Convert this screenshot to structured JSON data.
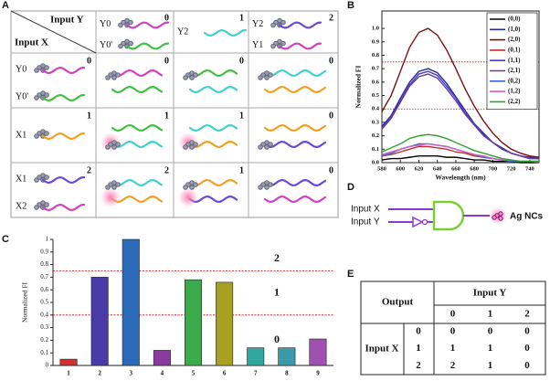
{
  "panel_labels": [
    "A",
    "B",
    "C",
    "D",
    "E"
  ],
  "chart_data": [
    {
      "type": "line",
      "xlabel": "Wavelength (nm)",
      "ylabel": "Normalized FI",
      "x": [
        580,
        590,
        600,
        610,
        620,
        630,
        640,
        650,
        660,
        670,
        680,
        690,
        700,
        710,
        720,
        730,
        740,
        750
      ],
      "xlim": [
        580,
        750
      ],
      "xticks": [
        580,
        600,
        620,
        640,
        660,
        680,
        700,
        720,
        740
      ],
      "ylim": [
        0,
        1.13
      ],
      "yticks": [
        {
          "value": 0,
          "label": "0.0"
        },
        0.1,
        0.2,
        0.3,
        0.4,
        0.5,
        0.6,
        0.7,
        0.8,
        0.9,
        {
          "value": 1,
          "label": "1.0"
        }
      ],
      "reference_lines": [
        0.75,
        0.4
      ],
      "reference_color": "#cc0000",
      "legend": "upper right",
      "series": [
        {
          "name": "(0,0)",
          "color": "#000000",
          "values": [
            0.02,
            0.03,
            0.03,
            0.04,
            0.05,
            0.05,
            0.05,
            0.04,
            0.04,
            0.03,
            0.02,
            0.02,
            0.01,
            0.01,
            0.01,
            0.0,
            0.0,
            0.0
          ]
        },
        {
          "name": "(1,0)",
          "color": "#2a2a9a",
          "values": [
            0.27,
            0.35,
            0.48,
            0.6,
            0.68,
            0.7,
            0.67,
            0.59,
            0.49,
            0.39,
            0.29,
            0.22,
            0.15,
            0.11,
            0.07,
            0.05,
            0.04,
            0.03
          ]
        },
        {
          "name": "(2,0)",
          "color": "#7a1010",
          "values": [
            0.38,
            0.5,
            0.68,
            0.86,
            0.97,
            1.0,
            0.95,
            0.84,
            0.7,
            0.55,
            0.42,
            0.31,
            0.22,
            0.15,
            0.1,
            0.07,
            0.05,
            0.04
          ]
        },
        {
          "name": "(0,1)",
          "color": "#c03030",
          "values": [
            0.05,
            0.06,
            0.08,
            0.1,
            0.12,
            0.12,
            0.11,
            0.1,
            0.08,
            0.07,
            0.05,
            0.04,
            0.03,
            0.02,
            0.01,
            0.01,
            0.01,
            0.0
          ]
        },
        {
          "name": "(1,1)",
          "color": "#4040d0",
          "values": [
            0.26,
            0.34,
            0.46,
            0.58,
            0.66,
            0.68,
            0.65,
            0.57,
            0.48,
            0.37,
            0.29,
            0.21,
            0.15,
            0.1,
            0.07,
            0.05,
            0.03,
            0.03
          ]
        },
        {
          "name": "(2,1)",
          "color": "#6a3a9a",
          "values": [
            0.25,
            0.33,
            0.45,
            0.57,
            0.64,
            0.66,
            0.63,
            0.55,
            0.46,
            0.36,
            0.28,
            0.2,
            0.15,
            0.1,
            0.07,
            0.05,
            0.03,
            0.03
          ]
        },
        {
          "name": "(0,2)",
          "color": "#3a6ad0",
          "values": [
            0.05,
            0.07,
            0.1,
            0.12,
            0.14,
            0.14,
            0.13,
            0.12,
            0.1,
            0.08,
            0.06,
            0.04,
            0.03,
            0.02,
            0.01,
            0.01,
            0.01,
            0.01
          ]
        },
        {
          "name": "(1,2)",
          "color": "#d060c0",
          "values": [
            0.06,
            0.08,
            0.1,
            0.12,
            0.13,
            0.14,
            0.13,
            0.12,
            0.1,
            0.08,
            0.06,
            0.05,
            0.03,
            0.02,
            0.02,
            0.01,
            0.01,
            0.01
          ]
        },
        {
          "name": "(2,2)",
          "color": "#30a030",
          "values": [
            0.08,
            0.11,
            0.14,
            0.18,
            0.2,
            0.21,
            0.2,
            0.18,
            0.15,
            0.12,
            0.09,
            0.07,
            0.05,
            0.03,
            0.02,
            0.01,
            0.01,
            0.01
          ]
        }
      ]
    },
    {
      "type": "bar",
      "ylabel": "Normalized FI",
      "categories": [
        "1",
        "2",
        "3",
        "4",
        "5",
        "6",
        "7",
        "8",
        "9"
      ],
      "values": [
        0.05,
        0.7,
        1.0,
        0.12,
        0.68,
        0.66,
        0.14,
        0.14,
        0.21
      ],
      "colors": [
        "#d03030",
        "#4a3aa8",
        "#2a6ab8",
        "#8a3a9a",
        "#3aaa4a",
        "#a8a020",
        "#30a8a0",
        "#3a9aa8",
        "#a050b0"
      ],
      "ylim": [
        0,
        1
      ],
      "yticks": [
        0,
        0.1,
        0.2,
        0.3,
        0.4,
        0.5,
        0.6,
        0.7,
        0.8,
        0.9,
        1
      ],
      "reference_lines": [
        0.75,
        0.4
      ],
      "reference_color": "#cc0000",
      "zone_labels": [
        "2",
        "1",
        "0"
      ]
    }
  ],
  "table_a": {
    "column_title": "Input Y",
    "row_title": "Input X",
    "columns": [
      {
        "labels": [
          "Y0",
          "Y0'"
        ],
        "output": 0
      },
      {
        "labels": [
          "Y2"
        ],
        "output": 1
      },
      {
        "labels": [
          "Y2",
          "Y1"
        ],
        "output": 2
      }
    ],
    "rows": [
      {
        "labels": [
          "Y0",
          "Y0'"
        ],
        "output": 0,
        "cells": [
          0,
          0,
          0
        ]
      },
      {
        "labels": [
          "X1"
        ],
        "output": 1,
        "cells": [
          1,
          1,
          0
        ]
      },
      {
        "labels": [
          "X1",
          "X2"
        ],
        "output": 2,
        "cells": [
          2,
          1,
          0
        ]
      }
    ]
  },
  "diagram_d": {
    "inputs": [
      "Input X",
      "Input Y"
    ],
    "output": "Ag NCs"
  },
  "table_e": {
    "header": "Output",
    "column_title": "Input Y",
    "columns": [
      "0",
      "1",
      "2"
    ],
    "row_title": "Input X",
    "rows": [
      {
        "label": "0",
        "values": [
          "0",
          "0",
          "0"
        ]
      },
      {
        "label": "1",
        "values": [
          "1",
          "1",
          "0"
        ]
      },
      {
        "label": "2",
        "values": [
          "2",
          "1",
          "0"
        ]
      }
    ]
  }
}
